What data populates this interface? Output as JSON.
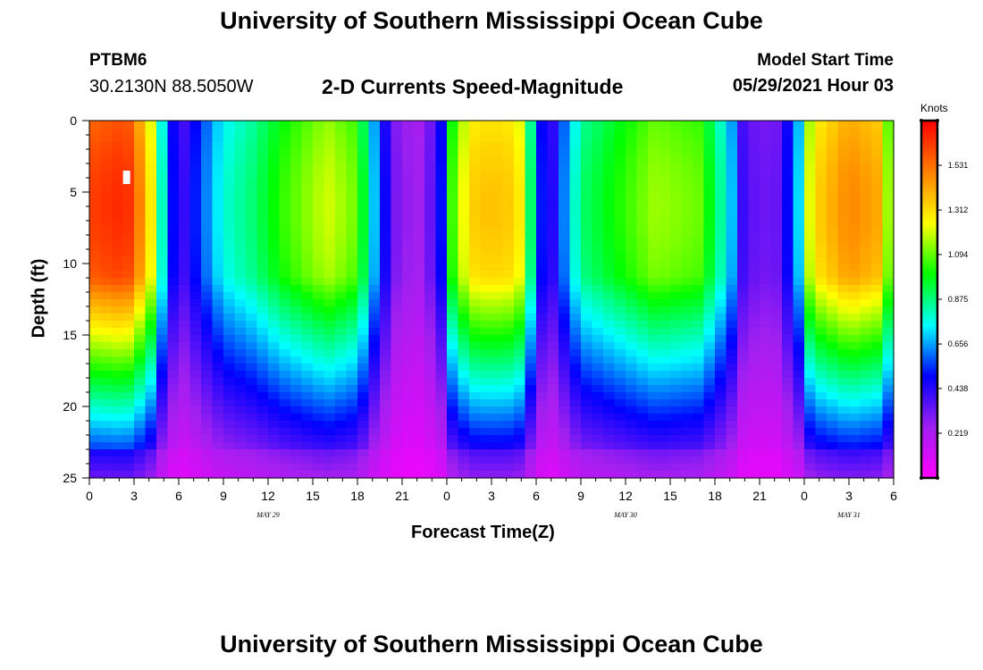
{
  "header": {
    "title": "University of Southern Mississippi Ocean Cube",
    "station": "PTBM6",
    "coords": "30.2130N  88.5050W",
    "chart_title": "2-D Currents Speed-Magnitude",
    "model_label": "Model Start Time",
    "model_time": "05/29/2021 Hour 03"
  },
  "footer": {
    "title": "University of Southern Mississippi Ocean Cube"
  },
  "chart_data": {
    "type": "heatmap",
    "title": "2-D Currents Speed-Magnitude",
    "xlabel": "Forecast Time(Z)",
    "ylabel": "Depth (ft)",
    "x_range_hours": [
      0,
      54
    ],
    "y_range": [
      0,
      25
    ],
    "y_inverted": true,
    "x_tick_labels": [
      "0",
      "3",
      "6",
      "9",
      "12",
      "15",
      "18",
      "21",
      "0",
      "3",
      "6",
      "9",
      "12",
      "15",
      "18",
      "21",
      "0",
      "3",
      "6"
    ],
    "y_ticks": [
      0,
      5,
      10,
      15,
      20,
      25
    ],
    "date_labels": [
      {
        "text": "MAY 29",
        "hour": 12
      },
      {
        "text": "MAY 30",
        "hour": 36
      },
      {
        "text": "MAY 31",
        "hour": 51
      }
    ],
    "colorbar": {
      "unit": "Knots",
      "range": [
        0,
        1.75
      ],
      "tick_values": [
        0.219,
        0.438,
        0.656,
        0.875,
        1.094,
        1.312,
        1.531
      ],
      "tick_labels": [
        "0.219",
        "0.438",
        "0.656",
        "0.875",
        "1.094",
        "1.312",
        "1.531"
      ],
      "colors": [
        "#ff00ff",
        "#a020f0",
        "#0000ff",
        "#00ffff",
        "#00ff00",
        "#ffff00",
        "#ff8000",
        "#ff0000"
      ]
    },
    "time_profile_knots": [
      [
        0,
        1.55
      ],
      [
        2.5,
        1.6
      ],
      [
        4,
        1.3
      ],
      [
        5,
        0.7
      ],
      [
        6,
        0.35
      ],
      [
        7.5,
        0.55
      ],
      [
        9,
        0.75
      ],
      [
        11,
        0.85
      ],
      [
        13,
        1.0
      ],
      [
        16,
        1.15
      ],
      [
        18,
        1.05
      ],
      [
        19.3,
        0.6
      ],
      [
        20.5,
        0.3
      ],
      [
        22,
        0.22
      ],
      [
        23.5,
        0.4
      ],
      [
        24.5,
        1.1
      ],
      [
        26,
        1.3
      ],
      [
        28,
        1.3
      ],
      [
        29.2,
        1.2
      ],
      [
        30,
        0.55
      ],
      [
        31,
        0.4
      ],
      [
        33,
        0.85
      ],
      [
        35,
        0.95
      ],
      [
        38,
        1.1
      ],
      [
        41,
        1.05
      ],
      [
        43,
        0.7
      ],
      [
        44,
        0.35
      ],
      [
        46,
        0.3
      ],
      [
        47.5,
        0.6
      ],
      [
        48.5,
        1.25
      ],
      [
        51,
        1.42
      ],
      [
        53,
        1.35
      ],
      [
        54,
        0.95
      ]
    ],
    "marker": {
      "hour": 2.5,
      "depth": 4
    }
  }
}
